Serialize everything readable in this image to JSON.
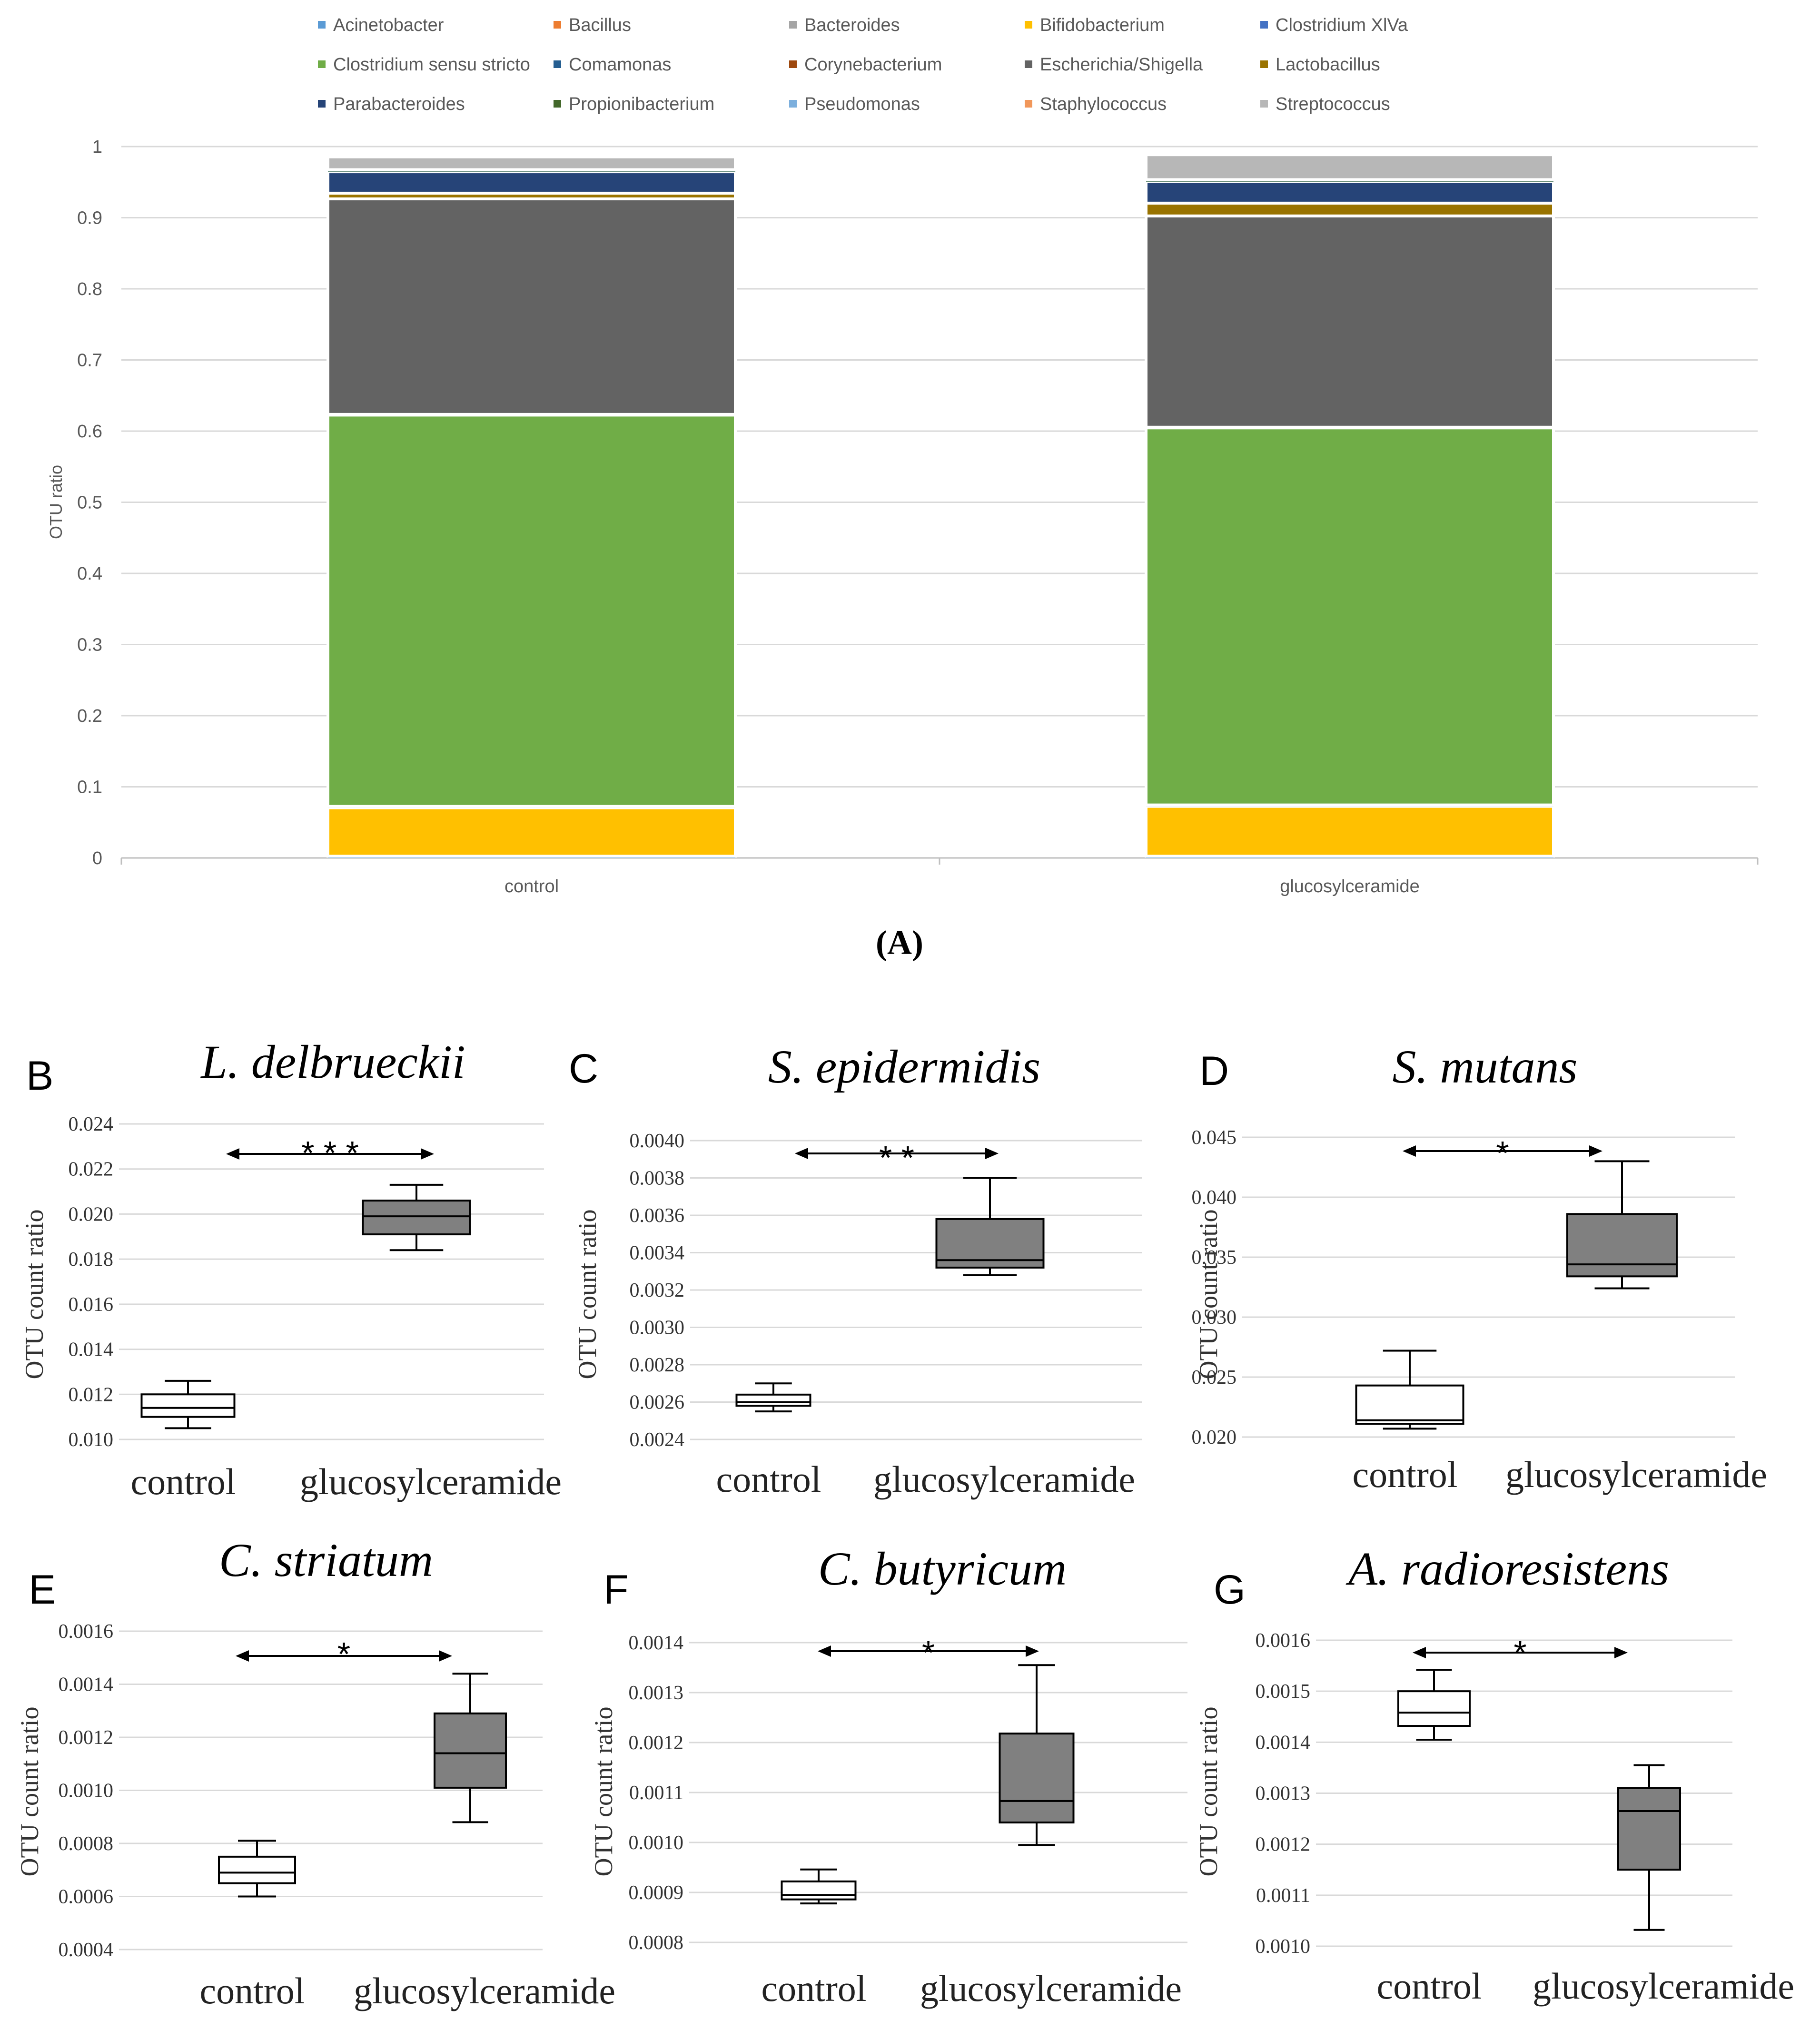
{
  "panel_a_caption": "(A)",
  "colors": {
    "grid": "#d9d9d9",
    "axis": "#bfbfbf",
    "box_dark": "#808080",
    "box_light": "#ffffff",
    "box_stroke": "#000000"
  },
  "chart_data": [
    {
      "id": "A",
      "type": "bar",
      "stacked": true,
      "title": "",
      "xlabel": "",
      "ylabel": "OTU ratio",
      "ylim": [
        0,
        1
      ],
      "yticks": [
        "0",
        "0.1",
        "0.2",
        "0.3",
        "0.4",
        "0.5",
        "0.6",
        "0.7",
        "0.8",
        "0.9",
        "1"
      ],
      "grid": true,
      "legend_position": "top",
      "categories": [
        "control",
        "glucosylceramide"
      ],
      "series": [
        {
          "name": "Acinetobacter",
          "color": "#5b9bd5",
          "values": [
            0.001,
            0.001
          ]
        },
        {
          "name": "Bacillus",
          "color": "#ed7d31",
          "values": [
            0.0005,
            0.0005
          ]
        },
        {
          "name": "Bacteroides",
          "color": "#a5a5a5",
          "values": [
            0.001,
            0.001
          ]
        },
        {
          "name": "Bifidobacterium",
          "color": "#ffc000",
          "values": [
            0.068,
            0.07
          ]
        },
        {
          "name": "Clostridium XlVa",
          "color": "#4472c4",
          "values": [
            0.002,
            0.002
          ]
        },
        {
          "name": "Clostridium sensu stricto",
          "color": "#70ad47",
          "values": [
            0.55,
            0.53
          ]
        },
        {
          "name": "Comamonas",
          "color": "#255e91",
          "values": [
            0.0005,
            0.0005
          ]
        },
        {
          "name": "Corynebacterium",
          "color": "#9e480e",
          "values": [
            0.0005,
            0.0005
          ]
        },
        {
          "name": "Escherichia/Shigella",
          "color": "#636363",
          "values": [
            0.303,
            0.297
          ]
        },
        {
          "name": "Lactobacillus",
          "color": "#997300",
          "values": [
            0.008,
            0.018
          ]
        },
        {
          "name": "Parabacteroides",
          "color": "#264478",
          "values": [
            0.03,
            0.03
          ]
        },
        {
          "name": "Propionibacterium",
          "color": "#43682b",
          "values": [
            0.0005,
            0.0005
          ]
        },
        {
          "name": "Pseudomonas",
          "color": "#7cafdd",
          "values": [
            0.0005,
            0.0005
          ]
        },
        {
          "name": "Staphylococcus",
          "color": "#f1975a",
          "values": [
            0.002,
            0.002
          ]
        },
        {
          "name": "Streptococcus",
          "color": "#b7b7b7",
          "values": [
            0.018,
            0.035
          ]
        }
      ]
    },
    {
      "id": "B",
      "type": "box",
      "panel_letter": "B",
      "title": "L.  delbrueckii",
      "ylabel": "OTU count ratio",
      "significance": "* * *",
      "ylim": [
        0.01,
        0.024
      ],
      "yticks": [
        "0.010",
        "0.012",
        "0.014",
        "0.016",
        "0.018",
        "0.020",
        "0.022",
        "0.024"
      ],
      "categories": [
        "control",
        "glucosylceramide"
      ],
      "boxes": [
        {
          "min": 0.0105,
          "q1": 0.011,
          "median": 0.0114,
          "q3": 0.012,
          "max": 0.0126,
          "fill": "light"
        },
        {
          "min": 0.0184,
          "q1": 0.0191,
          "median": 0.0199,
          "q3": 0.0206,
          "max": 0.0213,
          "fill": "dark"
        }
      ]
    },
    {
      "id": "C",
      "type": "box",
      "panel_letter": "C",
      "title": "S. epidermidis",
      "ylabel": "OTU count ratio",
      "significance": "* *",
      "ylim": [
        0.0024,
        0.004
      ],
      "yticks": [
        "0.0024",
        "0.0026",
        "0.0028",
        "0.0030",
        "0.0032",
        "0.0034",
        "0.0036",
        "0.0038",
        "0.0040"
      ],
      "categories": [
        "control",
        "glucosylceramide"
      ],
      "boxes": [
        {
          "min": 0.00255,
          "q1": 0.00258,
          "median": 0.0026,
          "q3": 0.00264,
          "max": 0.0027,
          "fill": "light"
        },
        {
          "min": 0.00328,
          "q1": 0.00332,
          "median": 0.00336,
          "q3": 0.00358,
          "max": 0.0038,
          "fill": "dark"
        }
      ]
    },
    {
      "id": "D",
      "type": "box",
      "panel_letter": "D",
      "title": "S. mutans",
      "ylabel": "OTU count ratio",
      "significance": "*",
      "ylim": [
        0.02,
        0.045
      ],
      "yticks": [
        "0.020",
        "0.025",
        "0.030",
        "0.035",
        "0.040",
        "0.045"
      ],
      "categories": [
        "control",
        "glucosylceramide"
      ],
      "boxes": [
        {
          "min": 0.0207,
          "q1": 0.0211,
          "median": 0.0214,
          "q3": 0.0243,
          "max": 0.0272,
          "fill": "light"
        },
        {
          "min": 0.0324,
          "q1": 0.0334,
          "median": 0.0344,
          "q3": 0.0386,
          "max": 0.043,
          "fill": "dark"
        }
      ]
    },
    {
      "id": "E",
      "type": "box",
      "panel_letter": "E",
      "title": "C. striatum",
      "ylabel": "OTU count ratio",
      "significance": "*",
      "ylim": [
        0.0004,
        0.0016
      ],
      "yticks": [
        "0.0004",
        "0.0006",
        "0.0008",
        "0.0010",
        "0.0012",
        "0.0014",
        "0.0016"
      ],
      "categories": [
        "control",
        "glucosylceramide"
      ],
      "boxes": [
        {
          "min": 0.0006,
          "q1": 0.00065,
          "median": 0.00069,
          "q3": 0.00075,
          "max": 0.00081,
          "fill": "light"
        },
        {
          "min": 0.00088,
          "q1": 0.00101,
          "median": 0.00114,
          "q3": 0.00129,
          "max": 0.00144,
          "fill": "dark"
        }
      ]
    },
    {
      "id": "F",
      "type": "box",
      "panel_letter": "F",
      "title": "C. butyricum",
      "ylabel": "OTU count ratio",
      "significance": "*",
      "ylim": [
        0.0008,
        0.0014
      ],
      "yticks": [
        "0.0008",
        "0.0009",
        "0.0010",
        "0.0011",
        "0.0012",
        "0.0013",
        "0.0014"
      ],
      "categories": [
        "control",
        "glucosylceramide"
      ],
      "boxes": [
        {
          "min": 0.000878,
          "q1": 0.000886,
          "median": 0.000895,
          "q3": 0.000922,
          "max": 0.000946,
          "fill": "light"
        },
        {
          "min": 0.000995,
          "q1": 0.00104,
          "median": 0.001083,
          "q3": 0.001218,
          "max": 0.001355,
          "fill": "dark"
        }
      ]
    },
    {
      "id": "G",
      "type": "box",
      "panel_letter": "G",
      "title": "A. radioresistens",
      "ylabel": "OTU count ratio",
      "significance": "*",
      "ylim": [
        0.001,
        0.0016
      ],
      "yticks": [
        "0.0010",
        "0.0011",
        "0.0012",
        "0.0013",
        "0.0014",
        "0.0015",
        "0.0016"
      ],
      "categories": [
        "control",
        "glucosylceramide"
      ],
      "boxes": [
        {
          "min": 0.001405,
          "q1": 0.001432,
          "median": 0.001458,
          "q3": 0.0015,
          "max": 0.001542,
          "fill": "light"
        },
        {
          "min": 0.001032,
          "q1": 0.00115,
          "median": 0.001265,
          "q3": 0.00131,
          "max": 0.001355,
          "fill": "dark"
        }
      ]
    }
  ]
}
